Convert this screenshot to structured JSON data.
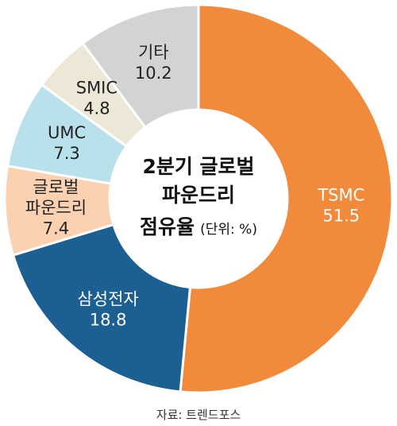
{
  "chart_data": {
    "type": "pie",
    "title_lines": [
      "2분기 글로벌",
      "파운드리",
      "점유율"
    ],
    "unit": "(단위: %)",
    "source": "자료: 트렌드포스",
    "slices": [
      {
        "label_lines": [
          "TSMC"
        ],
        "value": 51.5,
        "color": "#F18A3A",
        "text_color": "#ffffff"
      },
      {
        "label_lines": [
          "삼성전자"
        ],
        "value": 18.8,
        "color": "#1B5F93",
        "text_color": "#ffffff"
      },
      {
        "label_lines": [
          "글로벌",
          "파운드리"
        ],
        "value": 7.4,
        "color": "#FAD1B1",
        "text_color": "#222222"
      },
      {
        "label_lines": [
          "UMC"
        ],
        "value": 7.3,
        "color": "#B9E1EC",
        "text_color": "#222222"
      },
      {
        "label_lines": [
          "SMIC"
        ],
        "value": 4.8,
        "color": "#ECE7D6",
        "text_color": "#222222"
      },
      {
        "label_lines": [
          "기타"
        ],
        "value": 10.2,
        "color": "#D2D3D5",
        "text_color": "#222222"
      }
    ]
  }
}
